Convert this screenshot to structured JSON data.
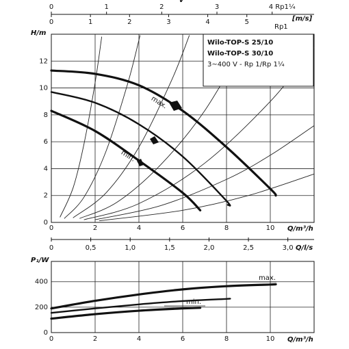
{
  "chart_data": [
    {
      "type": "line",
      "x_label": "Q/m³/h",
      "y_label": "H/m",
      "xlim": [
        0,
        12
      ],
      "ylim": [
        0,
        14
      ],
      "xticks": [
        0,
        2,
        4,
        6,
        8,
        10
      ],
      "yticks": [
        0,
        2,
        4,
        6,
        8,
        10,
        12
      ],
      "grid": true,
      "legend_box": [
        "Wilo-TOP-S 25/10",
        "Wilo-TOP-S 30/10",
        "3~400 V - Rp 1/Rp 1¼"
      ],
      "velocity_label": "v",
      "velocity_unit": "[m/s]",
      "velocity_axes": [
        {
          "xlim": [
            0,
            4.76
          ],
          "xticks": [
            0,
            1,
            2,
            3,
            {
              "value": 4,
              "label": "4 Rp1¼"
            }
          ]
        },
        {
          "xlim": [
            0,
            6.72
          ],
          "xticks": [
            0,
            1,
            2,
            3,
            4,
            5
          ],
          "label": "Rp1"
        }
      ],
      "flow_axis": {
        "label": "Q/l/s",
        "xlim": [
          0,
          3.333
        ],
        "xticks": [
          0,
          {
            "value": 0.5,
            "label": "0,5"
          },
          {
            "value": 1.0,
            "label": "1,0"
          },
          {
            "value": 1.5,
            "label": "1,5"
          },
          {
            "value": 2.0,
            "label": "2,0"
          },
          {
            "value": 2.5,
            "label": "2,5"
          },
          {
            "value": 3.0,
            "label": "3,0"
          }
        ]
      },
      "series": [
        {
          "name": "max.",
          "color": "#111111",
          "line_width": 3.2,
          "x": [
            0,
            2,
            4,
            6,
            8,
            10,
            10.25
          ],
          "values": [
            11.3,
            11.05,
            10.2,
            8.3,
            5.6,
            2.5,
            2.0
          ]
        },
        {
          "color": "#111111",
          "line_width": 2.4,
          "x": [
            0,
            2,
            4,
            6,
            8,
            8.06
          ],
          "values": [
            9.7,
            8.9,
            7.3,
            4.9,
            1.6,
            1.3
          ]
        },
        {
          "name": "min.",
          "color": "#111111",
          "line_width": 3.2,
          "x": [
            0,
            2,
            4,
            6,
            6.8
          ],
          "values": [
            8.3,
            6.8,
            4.6,
            2.2,
            0.9
          ]
        }
      ],
      "system_curves": [
        {
          "color": "#222222",
          "x": [
            0.4,
            1,
            1.5,
            2,
            2.3
          ],
          "values": [
            0.4,
            2.6,
            5.9,
            10.4,
            13.8
          ]
        },
        {
          "color": "#222222",
          "x": [
            0.6,
            1.5,
            2.5,
            3.5,
            4.05
          ],
          "values": [
            0.3,
            1.9,
            5.3,
            10.4,
            13.9
          ]
        },
        {
          "color": "#222222",
          "x": [
            1,
            2.5,
            4,
            5.5,
            6.3
          ],
          "values": [
            0.35,
            2.2,
            5.6,
            10.6,
            13.9
          ]
        },
        {
          "color": "#222222",
          "x": [
            1.3,
            3,
            5,
            7,
            9
          ],
          "values": [
            0.3,
            1.5,
            4.3,
            8.3,
            13.8
          ]
        },
        {
          "color": "#222222",
          "x": [
            1.5,
            4,
            7,
            10,
            12
          ],
          "values": [
            0.2,
            1.4,
            4.4,
            9,
            13
          ]
        },
        {
          "color": "#222222",
          "x": [
            2,
            5,
            8,
            10,
            12
          ],
          "values": [
            0.2,
            1.25,
            3.2,
            5,
            7.2
          ]
        },
        {
          "color": "#222222",
          "x": [
            2.2,
            6,
            9,
            12
          ],
          "values": [
            0.12,
            0.9,
            2,
            3.6
          ]
        }
      ]
    },
    {
      "type": "line",
      "x_label": "Q/m³/h",
      "y_label": "P₁/W",
      "xlim": [
        0,
        12
      ],
      "ylim": [
        0,
        560
      ],
      "xticks": [
        0,
        2,
        4,
        6,
        8,
        10
      ],
      "yticks": [
        0,
        200,
        400
      ],
      "grid": true,
      "series": [
        {
          "name": "max.",
          "color": "#111111",
          "line_width": 3.2,
          "x": [
            0,
            2,
            4,
            6,
            8,
            10,
            10.25
          ],
          "values": [
            190,
            250,
            300,
            340,
            365,
            378,
            380
          ]
        },
        {
          "color": "#111111",
          "line_width": 2.4,
          "x": [
            0,
            2,
            4,
            6,
            8,
            8.06
          ],
          "values": [
            155,
            190,
            222,
            248,
            265,
            266
          ]
        },
        {
          "name": "min.",
          "color": "#111111",
          "line_width": 3.2,
          "x": [
            0,
            2,
            4,
            6,
            6.8
          ],
          "values": [
            110,
            145,
            172,
            190,
            195
          ]
        }
      ]
    }
  ]
}
